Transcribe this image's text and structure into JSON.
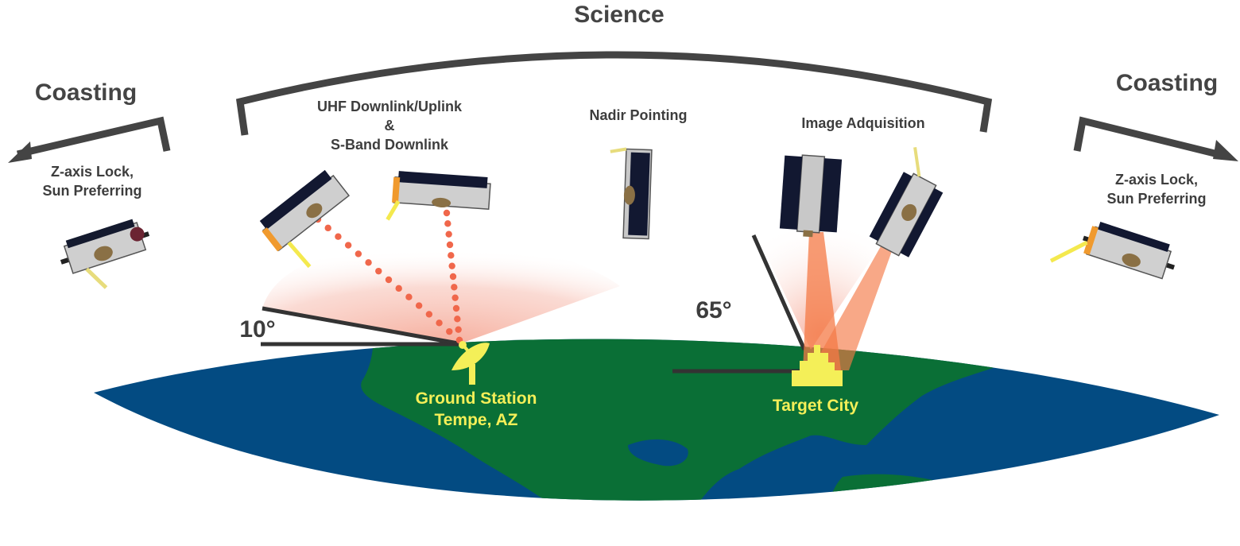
{
  "phases": {
    "science": "Science",
    "coasting_left": "Coasting",
    "coasting_right": "Coasting"
  },
  "modes": {
    "left_line1": "Z-axis Lock,",
    "left_line2": "Sun Preferring",
    "uhf_line1": "UHF Downlink/Uplink",
    "uhf_line2": "&",
    "uhf_line3": "S-Band Downlink",
    "nadir": "Nadir Pointing",
    "image": "Image Adquisition",
    "right_line1": "Z-axis Lock,",
    "right_line2": "Sun Preferring"
  },
  "angles": {
    "elevation_min": "10°",
    "target_angle": "65°"
  },
  "ground": {
    "station_line1": "Ground Station",
    "station_line2": "Tempe, AZ",
    "target": "Target City"
  },
  "colors": {
    "ocean": "#034b82",
    "land": "#0a6f36",
    "link_dots": "#f0674b",
    "beam": "#f47a46",
    "marker": "#f4ef58",
    "arrow": "#444444"
  }
}
